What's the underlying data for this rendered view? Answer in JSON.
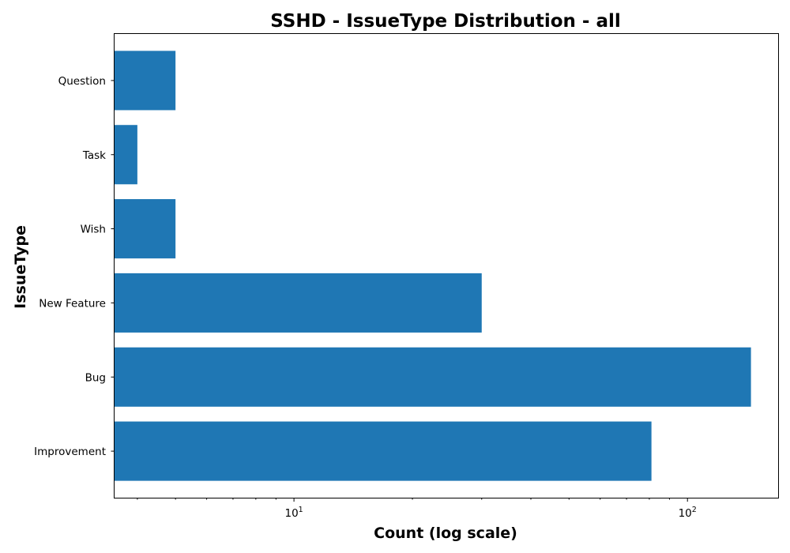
{
  "chart_data": {
    "type": "bar",
    "orientation": "horizontal",
    "title": "SSHD - IssueType Distribution - all",
    "xlabel": "Count (log scale)",
    "ylabel": "IssueType",
    "x_scale": "log",
    "xlim": [
      3.5,
      170
    ],
    "x_ticks": [
      {
        "value": 10,
        "base": "10",
        "exponent": "1"
      },
      {
        "value": 100,
        "base": "10",
        "exponent": "2"
      }
    ],
    "categories": [
      "Improvement",
      "Bug",
      "New Feature",
      "Wish",
      "Task",
      "Question"
    ],
    "values": [
      81,
      145,
      30,
      5,
      4,
      5
    ],
    "bar_color": "#1f77b4",
    "grid": false,
    "legend": "none"
  }
}
